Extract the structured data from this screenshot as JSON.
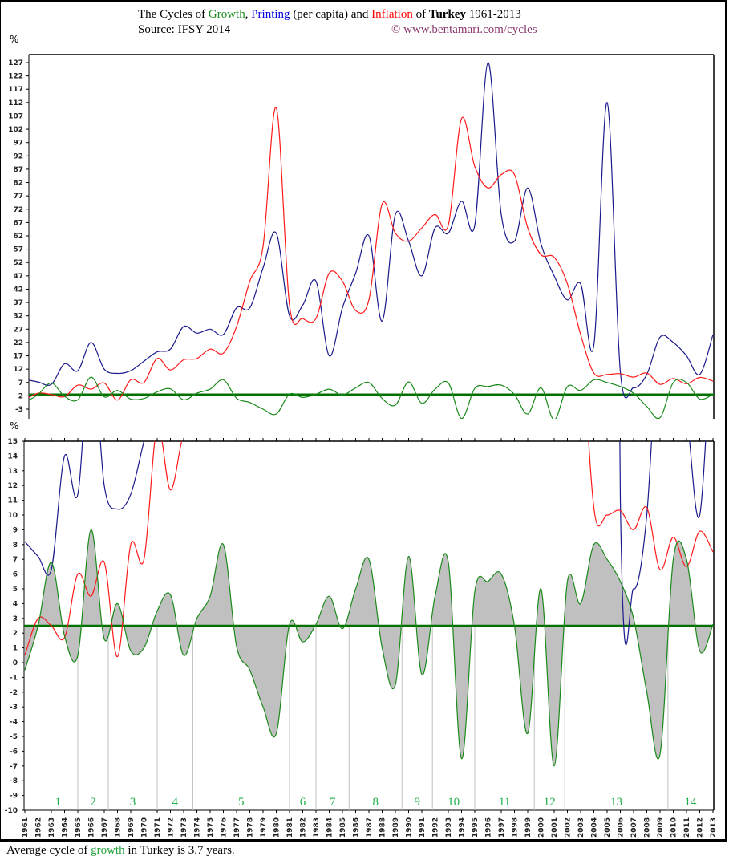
{
  "header": {
    "title_prefix": "The Cycles of",
    "title_growth": "Growth",
    "title_sep": ",",
    "title_printing": "Printing",
    "title_mid": " (per capita) and",
    "title_inflation": "Inflation",
    "title_of": " of",
    "title_country": "Turkey",
    "title_years": "1961-2013",
    "source": "Source: IFSY 2014",
    "copyright": "© www.bentamari.com/cycles"
  },
  "axis_unit": "%",
  "footer": {
    "prefix": "Average cycle of",
    "growth": "growth",
    "suffix": "in Turkey is 3.7 years."
  },
  "colors": {
    "growth": "#1a8a1a",
    "printing": "#1a1a8c",
    "inflation": "#ff1a1a",
    "average_line": "#007000",
    "fill": "#c0c0c0",
    "cycle_divider": "#c0c0c0",
    "cycle_label": "#22b04a"
  },
  "chart_data": [
    {
      "type": "line",
      "title": "The Cycles of Growth, Printing (per capita) and Inflation of Turkey 1961-2013 (full scale)",
      "ylabel": "%",
      "ylim": [
        -3,
        127
      ],
      "yticks": [
        127,
        122,
        117,
        112,
        107,
        102,
        97,
        92,
        87,
        82,
        77,
        72,
        67,
        62,
        57,
        52,
        47,
        42,
        37,
        32,
        27,
        22,
        17,
        12,
        7,
        2,
        -3
      ],
      "x": [
        1961,
        1962,
        1963,
        1964,
        1965,
        1966,
        1967,
        1968,
        1969,
        1970,
        1971,
        1972,
        1973,
        1974,
        1975,
        1976,
        1977,
        1978,
        1979,
        1980,
        1981,
        1982,
        1983,
        1984,
        1985,
        1986,
        1987,
        1988,
        1989,
        1990,
        1991,
        1992,
        1993,
        1994,
        1995,
        1996,
        1997,
        1998,
        1999,
        2000,
        2001,
        2002,
        2003,
        2004,
        2005,
        2006,
        2007,
        2008,
        2009,
        2010,
        2011,
        2012,
        2013
      ],
      "series": [
        {
          "name": "Printing",
          "color": "#1a1a8c",
          "values": [
            8.2,
            7.2,
            6.3,
            14,
            11.4,
            22,
            12,
            10.4,
            11.4,
            15,
            18.5,
            19.5,
            28,
            25.5,
            27,
            25,
            35,
            35,
            50,
            63,
            32,
            36,
            45,
            17,
            35,
            48,
            62,
            30,
            70,
            60,
            47,
            65,
            63,
            75,
            66,
            127,
            70,
            60,
            80,
            59,
            47,
            38,
            44,
            21,
            112,
            11,
            5,
            10,
            24,
            22,
            17,
            10,
            25
          ]
        },
        {
          "name": "Inflation",
          "color": "#ff1a1a",
          "values": [
            0.5,
            3,
            2.5,
            1.7,
            6,
            4.5,
            6.8,
            0.4,
            8,
            7,
            16,
            11.7,
            15.5,
            16,
            19.5,
            18,
            28,
            45,
            58,
            110,
            36,
            31,
            31,
            48,
            45,
            34,
            38,
            74,
            63,
            60,
            65,
            70,
            66,
            106,
            88,
            80,
            85,
            85,
            65,
            55,
            54,
            44,
            25,
            10.5,
            10,
            10.3,
            9,
            10.5,
            6.3,
            8.5,
            6.5,
            8.9,
            7.5
          ]
        },
        {
          "name": "Growth",
          "color": "#1a8a1a",
          "values": [
            -0.5,
            2.5,
            6.8,
            1.8,
            0.5,
            9,
            1.6,
            4,
            0.8,
            1,
            3.5,
            4.6,
            0.5,
            3,
            4.5,
            8,
            1.1,
            -0.5,
            -3,
            -4.8,
            2.6,
            1.4,
            2.6,
            4.5,
            2.3,
            5,
            7,
            1,
            -1.5,
            7.2,
            -0.8,
            4.5,
            6.8,
            -6.5,
            4.8,
            5.5,
            6,
            2.5,
            -4.8,
            5,
            -7,
            5.5,
            4,
            8,
            7,
            5.5,
            3,
            -2,
            -6.2,
            7,
            7,
            0.8,
            2.6
          ]
        },
        {
          "name": "Average growth",
          "color": "#007000",
          "values": [
            2.5
          ]
        }
      ]
    },
    {
      "type": "area",
      "title": "Growth cycles (zoomed)",
      "ylabel": "%",
      "ylim": [
        -10,
        15
      ],
      "yticks": [
        15,
        14,
        13,
        12,
        11,
        10,
        9,
        8,
        7,
        6,
        5,
        4,
        3,
        2,
        1,
        0,
        -1,
        -2,
        -3,
        -4,
        -5,
        -6,
        -7,
        -8,
        -9,
        -10
      ],
      "average_growth": 2.5,
      "cycles": [
        {
          "label": "1",
          "start": 1962,
          "end": 1965
        },
        {
          "label": "2",
          "start": 1965,
          "end": 1967.3
        },
        {
          "label": "3",
          "start": 1967.3,
          "end": 1971
        },
        {
          "label": "4",
          "start": 1971,
          "end": 1973.7
        },
        {
          "label": "5",
          "start": 1973.7,
          "end": 1981
        },
        {
          "label": "6",
          "start": 1981,
          "end": 1983
        },
        {
          "label": "7",
          "start": 1983,
          "end": 1985.5
        },
        {
          "label": "8",
          "start": 1985.5,
          "end": 1989.5
        },
        {
          "label": "9",
          "start": 1989.5,
          "end": 1991.8
        },
        {
          "label": "10",
          "start": 1991.8,
          "end": 1995
        },
        {
          "label": "11",
          "start": 1995,
          "end": 1999.5
        },
        {
          "label": "12",
          "start": 1999.5,
          "end": 2001.8
        },
        {
          "label": "13",
          "start": 2001.8,
          "end": 2009.6
        },
        {
          "label": "14",
          "start": 2009.6,
          "end": 2013
        }
      ]
    }
  ]
}
